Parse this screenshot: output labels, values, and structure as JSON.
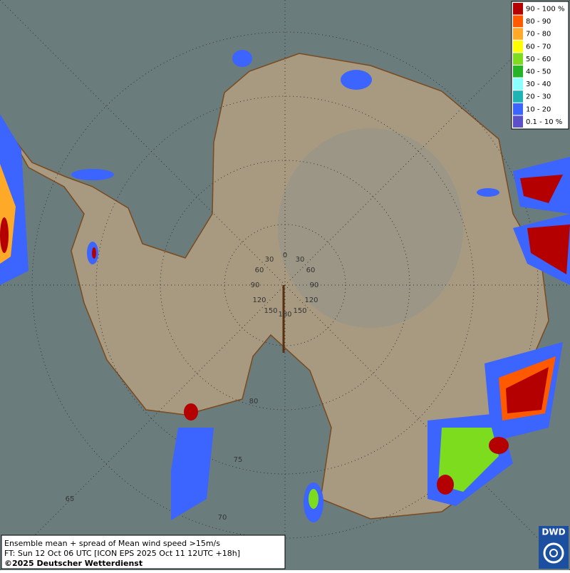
{
  "legend": {
    "items": [
      {
        "label": "90 - 100 %",
        "color": "#b40000"
      },
      {
        "label": "80 - 90",
        "color": "#ff5a00"
      },
      {
        "label": "70 - 80",
        "color": "#ffa928"
      },
      {
        "label": "60 - 70",
        "color": "#ffff00"
      },
      {
        "label": "50 - 60",
        "color": "#7ddc1e"
      },
      {
        "label": "40 - 50",
        "color": "#26b426"
      },
      {
        "label": "30 - 40",
        "color": "#8cffff"
      },
      {
        "label": "20 - 30",
        "color": "#1eb4b4"
      },
      {
        "label": "10 - 20",
        "color": "#3c64ff"
      },
      {
        "label": "0.1 - 10 %",
        "color": "#5a50c8"
      }
    ]
  },
  "graticule": {
    "meridian_labels": [
      "0",
      "30",
      "60",
      "90",
      "120",
      "150",
      "180"
    ],
    "latitude_labels": [
      "80",
      "75",
      "70",
      "65"
    ]
  },
  "info": {
    "lines": [
      "Ensemble mean + spread of Mean wind speed >15m/s",
      "FT: Sun 12 Oct 06 UTC [ICON EPS 2025 Oct 11 12UTC +18h]",
      "©2025 Deutscher Wetterdienst"
    ]
  },
  "logo": {
    "text": "DWD"
  }
}
